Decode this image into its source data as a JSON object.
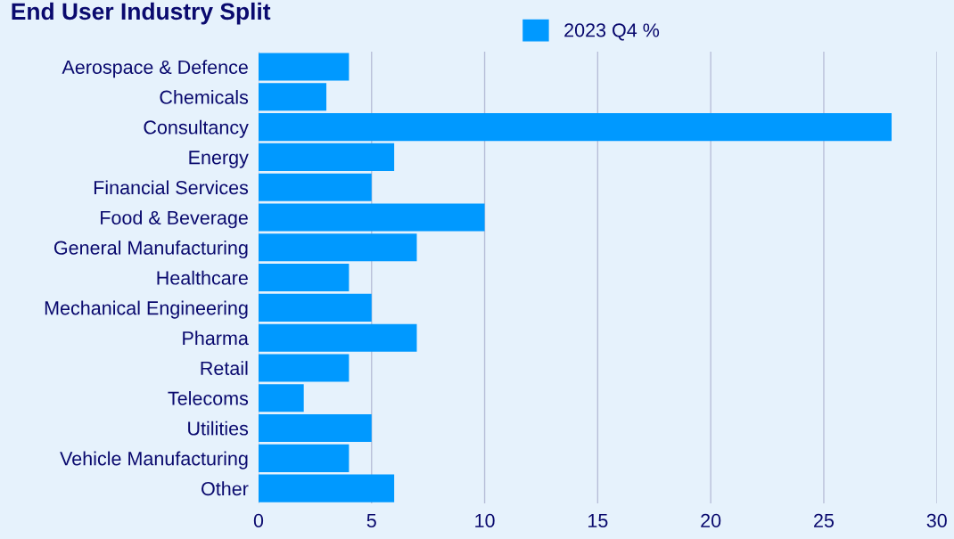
{
  "chart_data": {
    "type": "bar",
    "orientation": "horizontal",
    "title": "End User Industry Split",
    "categories": [
      "Aerospace & Defence",
      "Chemicals",
      "Consultancy",
      "Energy",
      "Financial Services",
      "Food & Beverage",
      "General Manufacturing",
      "Healthcare",
      "Mechanical Engineering",
      "Pharma",
      "Retail",
      "Telecoms",
      "Utilities",
      "Vehicle Manufacturing",
      "Other"
    ],
    "series": [
      {
        "name": "2023 Q4 %",
        "color": "#0099ff",
        "values": [
          4,
          3,
          28,
          6,
          5,
          10,
          7,
          4,
          5,
          7,
          4,
          2,
          5,
          4,
          6
        ]
      }
    ],
    "xlim": [
      0,
      30
    ],
    "xticks": [
      0,
      5,
      10,
      15,
      20,
      25,
      30
    ],
    "grid": "x",
    "legend": "top"
  }
}
